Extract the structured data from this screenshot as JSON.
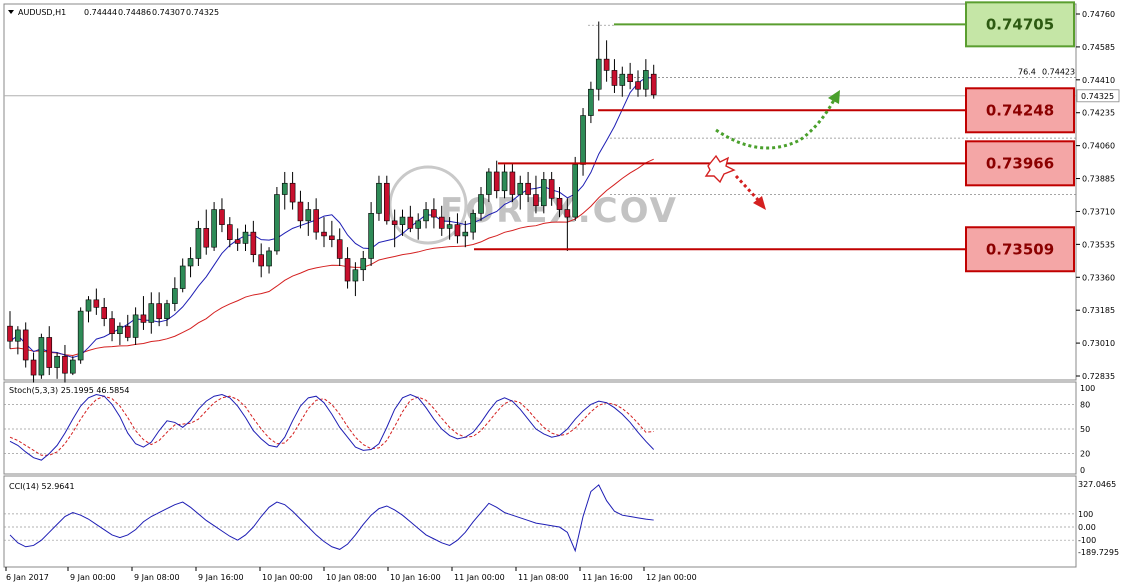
{
  "chart_data": [
    {
      "type": "candlestick",
      "panel": "price",
      "symbol_header": "AUDUSD,H1",
      "ohlc_header": [
        "0.74444",
        "0.74486",
        "0.74307",
        "0.74325"
      ],
      "ylim": [
        0.72835,
        0.7476
      ],
      "y_ticks": [
        "0.74760",
        "0.74585",
        "0.74410",
        "0.74235",
        "0.74060",
        "0.73885",
        "0.73710",
        "0.73535",
        "0.73360",
        "0.73185",
        "0.73010",
        "0.72835"
      ],
      "x_ticks": [
        "6 Jan 2017",
        "9 Jan 00:00",
        "9 Jan 08:00",
        "9 Jan 16:00",
        "10 Jan 00:00",
        "10 Jan 08:00",
        "10 Jan 16:00",
        "11 Jan 00:00",
        "11 Jan 08:00",
        "11 Jan 16:00",
        "12 Jan 00:00"
      ],
      "current_price": "0.74325",
      "fib_label": "76.4",
      "fib_value": "0.74423",
      "levels": [
        {
          "value": "0.74705",
          "kind": "resistance",
          "color": "#5a9e2f",
          "box_fill": "#c5e6a6"
        },
        {
          "value": "0.74248",
          "kind": "support",
          "color": "#c00000",
          "box_fill": "#f4a6a6"
        },
        {
          "value": "0.73966",
          "kind": "support",
          "color": "#c00000",
          "box_fill": "#f4a6a6"
        },
        {
          "value": "0.73509",
          "kind": "support",
          "color": "#c00000",
          "box_fill": "#f4a6a6"
        }
      ],
      "watermark": "FOREX.COV",
      "candles": [
        [
          0.731,
          0.7318,
          0.7298,
          0.7302
        ],
        [
          0.7302,
          0.731,
          0.7295,
          0.7308
        ],
        [
          0.7308,
          0.7312,
          0.7288,
          0.7292
        ],
        [
          0.7292,
          0.7296,
          0.728,
          0.7284
        ],
        [
          0.7284,
          0.7306,
          0.7282,
          0.7304
        ],
        [
          0.7304,
          0.731,
          0.7284,
          0.7288
        ],
        [
          0.7288,
          0.7296,
          0.7282,
          0.7294
        ],
        [
          0.7294,
          0.73,
          0.728,
          0.7285
        ],
        [
          0.7285,
          0.7294,
          0.7284,
          0.7292
        ],
        [
          0.7292,
          0.732,
          0.729,
          0.7318
        ],
        [
          0.7318,
          0.7326,
          0.7312,
          0.7324
        ],
        [
          0.7324,
          0.733,
          0.7316,
          0.732
        ],
        [
          0.732,
          0.7325,
          0.731,
          0.7314
        ],
        [
          0.7314,
          0.7318,
          0.7302,
          0.7306
        ],
        [
          0.7306,
          0.7312,
          0.73,
          0.731
        ],
        [
          0.731,
          0.7316,
          0.7302,
          0.7304
        ],
        [
          0.7304,
          0.732,
          0.73,
          0.7316
        ],
        [
          0.7316,
          0.7326,
          0.7308,
          0.7312
        ],
        [
          0.7312,
          0.7328,
          0.7306,
          0.7322
        ],
        [
          0.7322,
          0.7328,
          0.731,
          0.7314
        ],
        [
          0.7314,
          0.7324,
          0.731,
          0.7322
        ],
        [
          0.7322,
          0.7336,
          0.7318,
          0.733
        ],
        [
          0.733,
          0.7346,
          0.7328,
          0.7342
        ],
        [
          0.7342,
          0.7352,
          0.7336,
          0.7346
        ],
        [
          0.7346,
          0.7366,
          0.7342,
          0.7362
        ],
        [
          0.7362,
          0.7372,
          0.7348,
          0.7352
        ],
        [
          0.7352,
          0.7376,
          0.735,
          0.7372
        ],
        [
          0.7372,
          0.7378,
          0.736,
          0.7364
        ],
        [
          0.7364,
          0.7368,
          0.7352,
          0.7356
        ],
        [
          0.7356,
          0.7362,
          0.735,
          0.7354
        ],
        [
          0.7354,
          0.7364,
          0.735,
          0.736
        ],
        [
          0.736,
          0.7366,
          0.7344,
          0.7348
        ],
        [
          0.7348,
          0.7354,
          0.7336,
          0.7342
        ],
        [
          0.7342,
          0.7352,
          0.7338,
          0.735
        ],
        [
          0.735,
          0.7384,
          0.7348,
          0.738
        ],
        [
          0.738,
          0.7392,
          0.7372,
          0.7386
        ],
        [
          0.7386,
          0.7392,
          0.7372,
          0.7376
        ],
        [
          0.7376,
          0.7382,
          0.7362,
          0.7366
        ],
        [
          0.7366,
          0.7376,
          0.7358,
          0.7372
        ],
        [
          0.7372,
          0.7378,
          0.7356,
          0.736
        ],
        [
          0.736,
          0.7368,
          0.7352,
          0.7358
        ],
        [
          0.7358,
          0.7366,
          0.7352,
          0.7356
        ],
        [
          0.7356,
          0.7362,
          0.7342,
          0.7346
        ],
        [
          0.7346,
          0.7352,
          0.733,
          0.7334
        ],
        [
          0.7334,
          0.7344,
          0.7326,
          0.734
        ],
        [
          0.734,
          0.735,
          0.7334,
          0.7346
        ],
        [
          0.7346,
          0.7376,
          0.7342,
          0.737
        ],
        [
          0.737,
          0.739,
          0.7366,
          0.7386
        ],
        [
          0.7386,
          0.739,
          0.7364,
          0.7366
        ],
        [
          0.7366,
          0.7372,
          0.7352,
          0.7364
        ],
        [
          0.7364,
          0.7372,
          0.7358,
          0.7368
        ],
        [
          0.7368,
          0.7374,
          0.736,
          0.7362
        ],
        [
          0.7362,
          0.737,
          0.7356,
          0.7366
        ],
        [
          0.7366,
          0.7376,
          0.7362,
          0.7372
        ],
        [
          0.7372,
          0.7378,
          0.7362,
          0.7368
        ],
        [
          0.7368,
          0.7374,
          0.7358,
          0.7362
        ],
        [
          0.7362,
          0.7368,
          0.7356,
          0.7364
        ],
        [
          0.7364,
          0.737,
          0.7354,
          0.7358
        ],
        [
          0.7358,
          0.7366,
          0.7352,
          0.736
        ],
        [
          0.736,
          0.7372,
          0.7356,
          0.737
        ],
        [
          0.737,
          0.7384,
          0.7366,
          0.738
        ],
        [
          0.738,
          0.7394,
          0.7376,
          0.7392
        ],
        [
          0.7392,
          0.7398,
          0.7378,
          0.7382
        ],
        [
          0.7382,
          0.7396,
          0.7378,
          0.7392
        ],
        [
          0.7392,
          0.7397,
          0.7376,
          0.738
        ],
        [
          0.738,
          0.739,
          0.7372,
          0.7386
        ],
        [
          0.7386,
          0.7392,
          0.7376,
          0.738
        ],
        [
          0.738,
          0.739,
          0.737,
          0.7374
        ],
        [
          0.7374,
          0.7392,
          0.737,
          0.7388
        ],
        [
          0.7388,
          0.7392,
          0.7374,
          0.7378
        ],
        [
          0.7378,
          0.7384,
          0.7368,
          0.7372
        ],
        [
          0.7372,
          0.7378,
          0.735,
          0.7368
        ],
        [
          0.7368,
          0.74,
          0.7366,
          0.7396
        ],
        [
          0.7396,
          0.7426,
          0.739,
          0.7422
        ],
        [
          0.7422,
          0.744,
          0.7418,
          0.7436
        ],
        [
          0.7436,
          0.7472,
          0.743,
          0.7452
        ],
        [
          0.7452,
          0.7462,
          0.744,
          0.7446
        ],
        [
          0.7446,
          0.7452,
          0.7434,
          0.7438
        ],
        [
          0.7438,
          0.7448,
          0.7432,
          0.7444
        ],
        [
          0.7444,
          0.745,
          0.7436,
          0.744
        ],
        [
          0.744,
          0.7446,
          0.7432,
          0.7436
        ],
        [
          0.7436,
          0.7452,
          0.7432,
          0.7446
        ],
        [
          0.7444,
          0.7449,
          0.7431,
          0.7433
        ]
      ],
      "ma_fast": {
        "color": "#1e1eb4"
      },
      "ma_slow": {
        "color": "#d42020"
      }
    },
    {
      "type": "line",
      "panel": "stochastic",
      "label": "Stoch(5,3,3) 25.1995 46.5854",
      "ylim": [
        0,
        100
      ],
      "y_ticks": [
        "100",
        "80",
        "50",
        "20",
        "0"
      ],
      "main_color": "#1e1eb4",
      "signal_color": "#d42020",
      "main": [
        35,
        30,
        22,
        15,
        12,
        20,
        30,
        45,
        62,
        78,
        88,
        92,
        90,
        80,
        65,
        45,
        32,
        28,
        34,
        48,
        60,
        58,
        52,
        60,
        74,
        84,
        90,
        92,
        88,
        78,
        64,
        48,
        38,
        30,
        28,
        40,
        60,
        78,
        88,
        90,
        82,
        68,
        52,
        40,
        28,
        24,
        25,
        32,
        52,
        74,
        88,
        92,
        88,
        76,
        62,
        50,
        42,
        38,
        40,
        46,
        58,
        72,
        84,
        88,
        84,
        74,
        62,
        50,
        44,
        40,
        42,
        50,
        62,
        72,
        80,
        84,
        82,
        76,
        68,
        58,
        46,
        35,
        25
      ],
      "signal": [
        40,
        36,
        30,
        24,
        18,
        18,
        22,
        32,
        46,
        62,
        76,
        86,
        90,
        87,
        78,
        64,
        48,
        37,
        31,
        36,
        46,
        55,
        56,
        57,
        62,
        72,
        82,
        88,
        90,
        86,
        77,
        63,
        50,
        39,
        32,
        33,
        43,
        59,
        75,
        85,
        87,
        80,
        68,
        53,
        40,
        31,
        26,
        27,
        36,
        53,
        71,
        85,
        89,
        85,
        75,
        63,
        52,
        44,
        40,
        41,
        48,
        59,
        71,
        81,
        85,
        82,
        73,
        62,
        52,
        45,
        42,
        44,
        51,
        61,
        71,
        79,
        82,
        80,
        75,
        67,
        57,
        46,
        47
      ],
      "ref_lines": [
        80,
        50,
        20
      ]
    },
    {
      "type": "line",
      "panel": "cci",
      "label": "CCI(14) 52.9641",
      "ylim": [
        -189.7295,
        327.0465
      ],
      "y_ticks": [
        "327.0465",
        "100",
        "0.00",
        "-100",
        "-189.7295"
      ],
      "color": "#1e1eb4",
      "values": [
        -60,
        -120,
        -150,
        -140,
        -100,
        -40,
        20,
        80,
        110,
        90,
        60,
        20,
        -20,
        -60,
        -80,
        -60,
        -20,
        40,
        80,
        110,
        140,
        170,
        190,
        150,
        100,
        50,
        10,
        -30,
        -70,
        -100,
        -60,
        0,
        80,
        150,
        190,
        170,
        120,
        60,
        0,
        -60,
        -110,
        -150,
        -170,
        -130,
        -60,
        20,
        90,
        140,
        160,
        130,
        90,
        40,
        -10,
        -60,
        -90,
        -120,
        -140,
        -100,
        -40,
        40,
        110,
        180,
        150,
        110,
        90,
        70,
        50,
        30,
        20,
        10,
        0,
        -40,
        -180,
        80,
        270,
        320,
        200,
        120,
        90,
        80,
        70,
        60,
        52.9641
      ]
    }
  ]
}
